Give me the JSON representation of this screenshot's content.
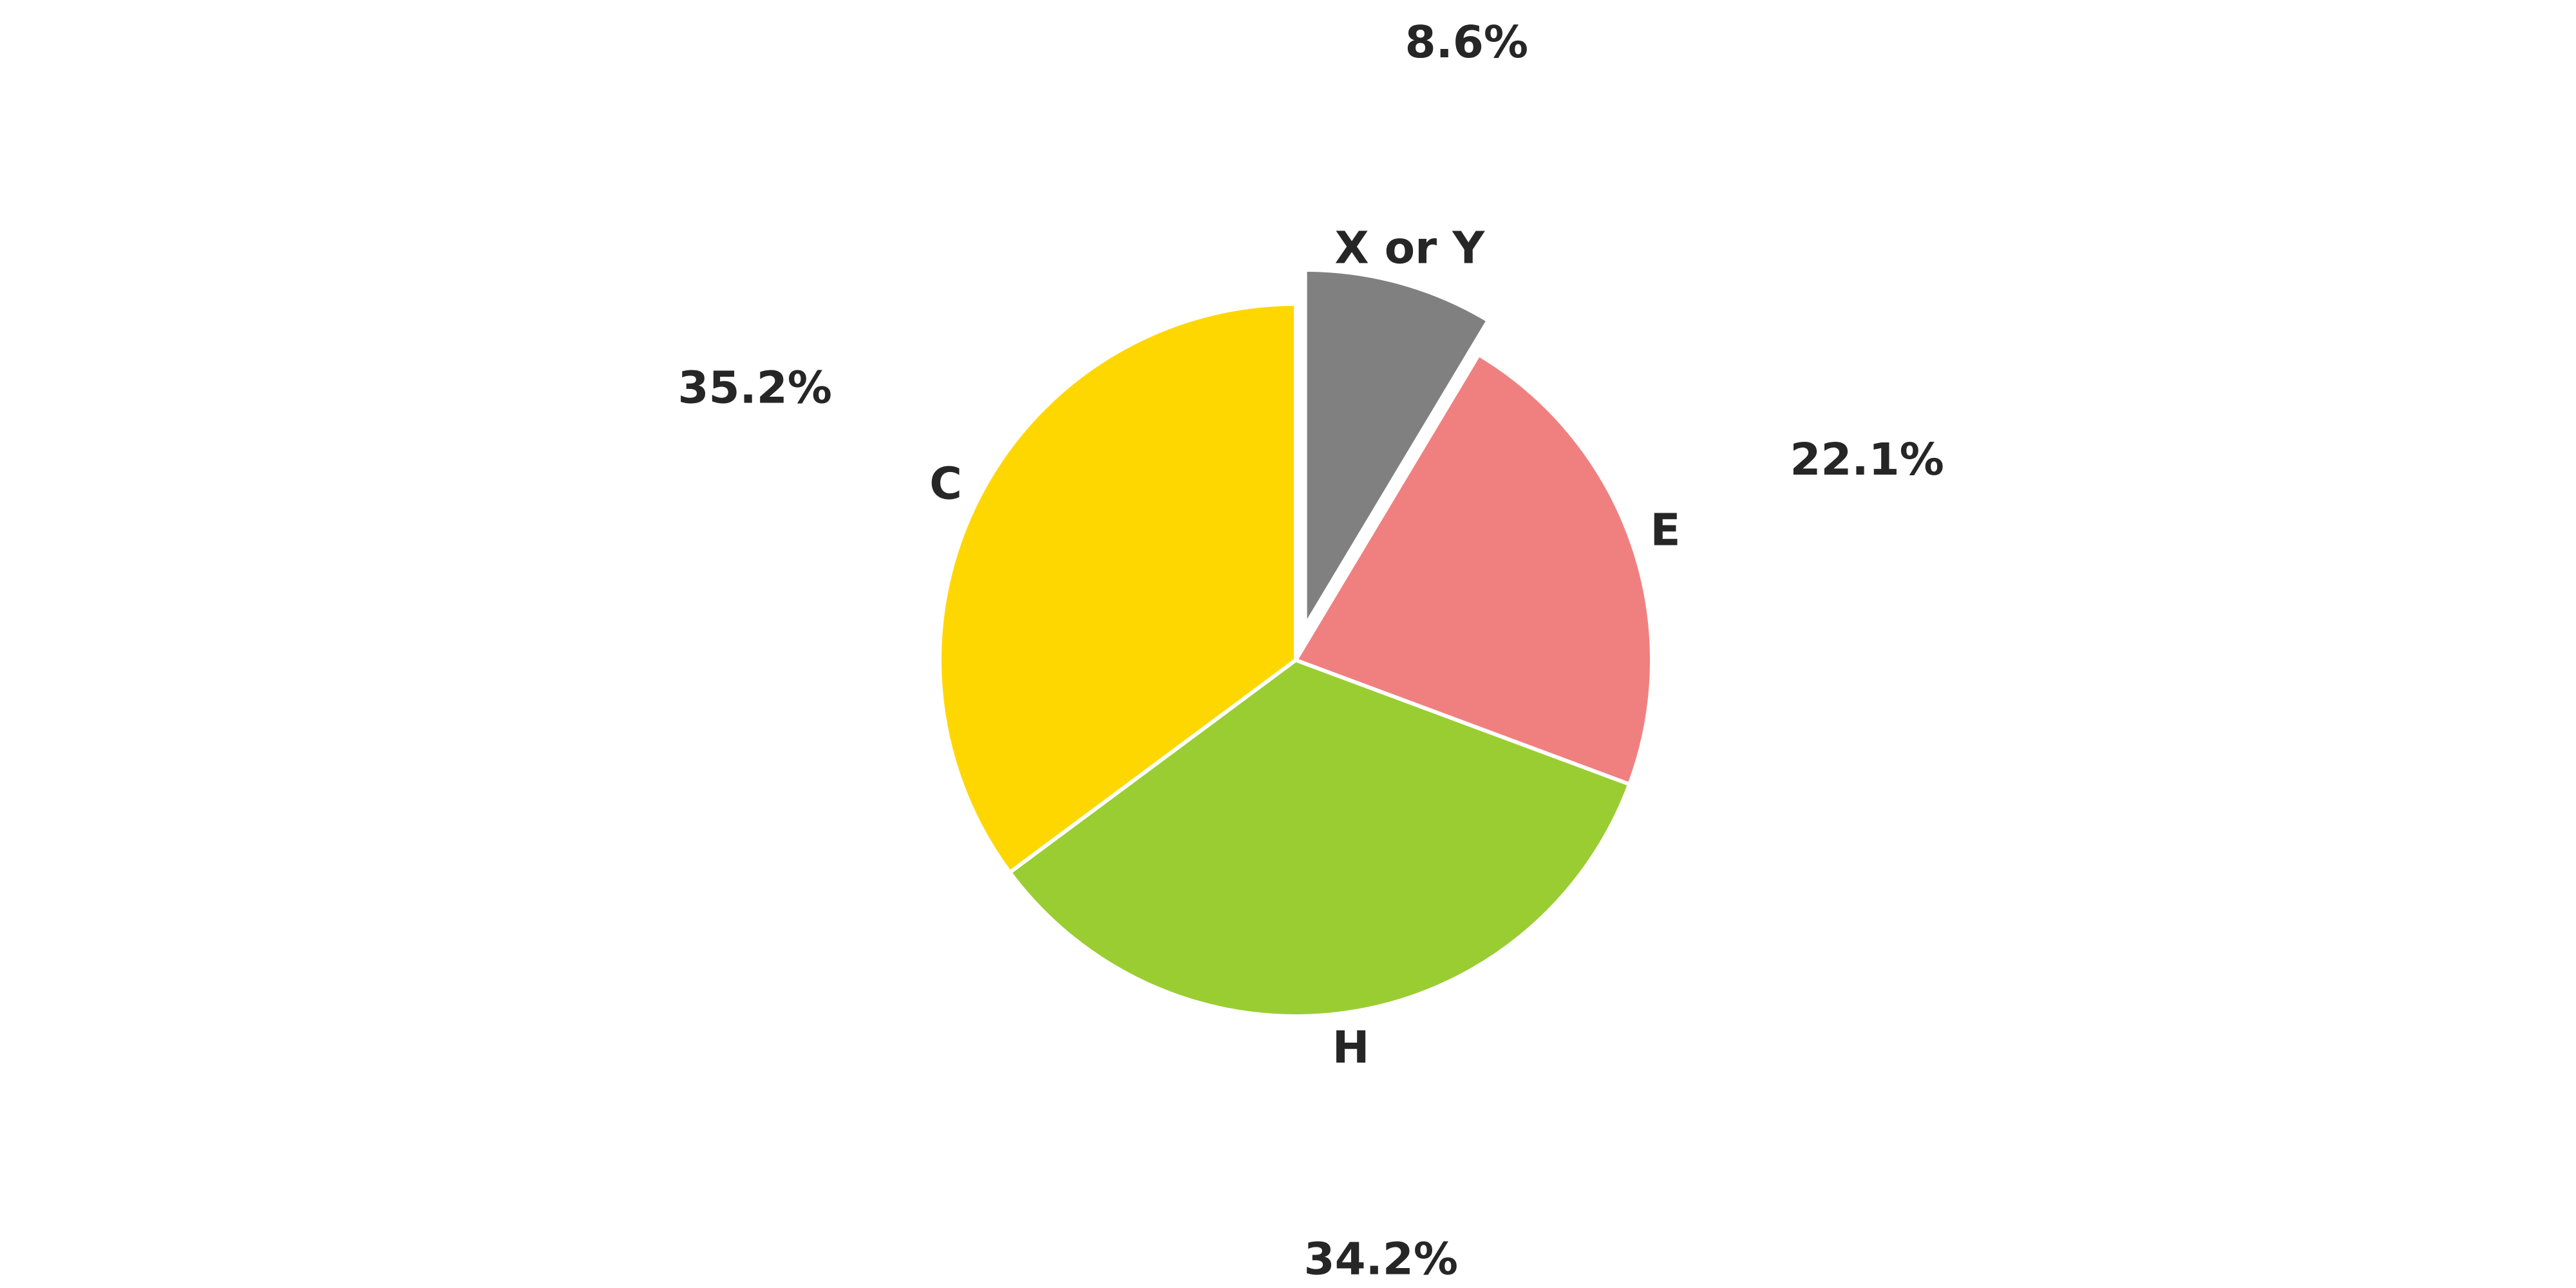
{
  "chart_data": {
    "type": "pie",
    "title": "",
    "start": "top",
    "direction": "clockwise",
    "exploded": [
      "X or Y"
    ],
    "slices": [
      {
        "label": "X or Y",
        "value": 8.6,
        "pct_label": "8.6%",
        "color": "#808080"
      },
      {
        "label": "E",
        "value": 22.1,
        "pct_label": "22.1%",
        "color": "#F08080"
      },
      {
        "label": "H",
        "value": 34.2,
        "pct_label": "34.2%",
        "color": "#9ACD32"
      },
      {
        "label": "C",
        "value": 35.2,
        "pct_label": "35.2%",
        "color": "#FFD700"
      }
    ]
  }
}
